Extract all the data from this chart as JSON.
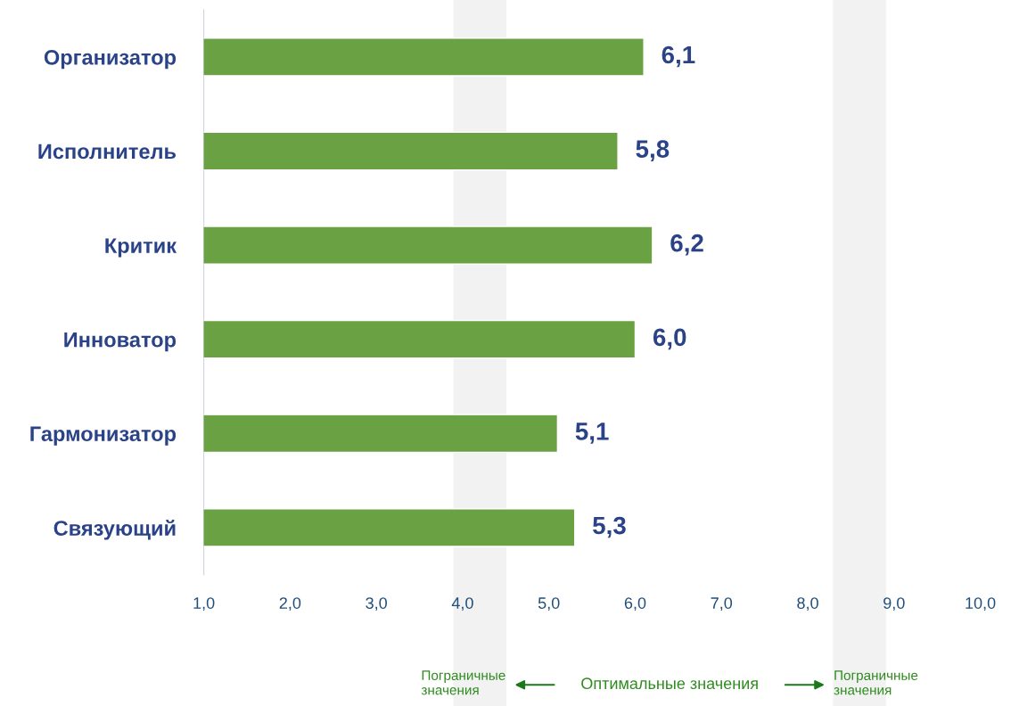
{
  "chart_data": {
    "type": "bar",
    "orientation": "horizontal",
    "categories": [
      "Организатор",
      "Исполнитель",
      "Критик",
      "Инноватор",
      "Гармонизатор",
      "Связующий"
    ],
    "values": [
      6.1,
      5.8,
      6.2,
      6.0,
      5.1,
      5.3
    ],
    "value_labels": [
      "6,1",
      "5,8",
      "6,2",
      "6,0",
      "5,1",
      "5,3"
    ],
    "color": "#6aa143",
    "xlim": [
      1,
      10
    ],
    "xticks": [
      {
        "value": 1,
        "label": "1,0"
      },
      {
        "value": 2,
        "label": "2,0"
      },
      {
        "value": 3,
        "label": "3,0"
      },
      {
        "value": 4,
        "label": "4,0"
      },
      {
        "value": 5,
        "label": "5,0"
      },
      {
        "value": 6,
        "label": "6,0"
      },
      {
        "value": 7,
        "label": "7,0"
      },
      {
        "value": 8,
        "label": "8,0"
      },
      {
        "value": 9,
        "label": "9,0"
      },
      {
        "value": 10,
        "label": "10,0"
      }
    ],
    "bands": [
      {
        "axis": "x",
        "from": 3.9,
        "to": 4.5,
        "label": "Пограничные\nзначения",
        "color": "#f2f2f2"
      },
      {
        "axis": "x",
        "from": 8.3,
        "to": 8.9,
        "label": "Пограничные\nзначения",
        "color": "#f2f2f2"
      }
    ],
    "annotations": [
      "Оптимальные значения"
    ],
    "grid": false,
    "legend": false
  }
}
